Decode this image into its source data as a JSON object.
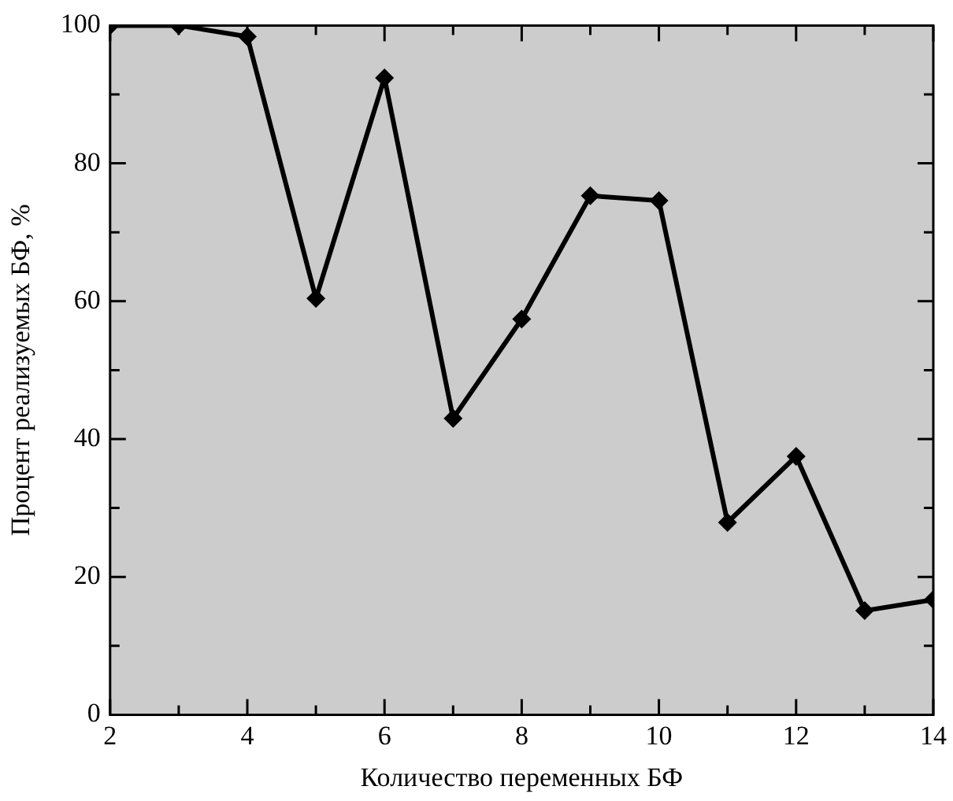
{
  "chart_data": {
    "type": "line",
    "xlabel": "Количество переменных БФ",
    "ylabel": "Процент реализуемых БФ, %",
    "x": [
      2,
      3,
      4,
      5,
      6,
      7,
      8,
      9,
      10,
      11,
      12,
      13,
      14
    ],
    "series": [
      {
        "color": "#000000",
        "values": [
          100,
          100,
          98.4,
          60.4,
          92.4,
          43,
          57.4,
          75.3,
          74.6,
          27.9,
          37.5,
          15.1,
          16.7
        ]
      }
    ],
    "xlim": [
      2,
      14
    ],
    "xticks": [
      2,
      {
        "value": 3,
        "label": null
      },
      4,
      {
        "value": 5,
        "label": null
      },
      6,
      {
        "value": 7,
        "label": null
      },
      8,
      {
        "value": 9,
        "label": null
      },
      10,
      {
        "value": 11,
        "label": null
      },
      12,
      {
        "value": 13,
        "label": null
      },
      14
    ],
    "ylim": [
      0,
      100
    ],
    "yticks": [
      0,
      {
        "value": 10,
        "label": null
      },
      20,
      {
        "value": 30,
        "label": null
      },
      40,
      {
        "value": 50,
        "label": null
      },
      60,
      {
        "value": 70,
        "label": null
      },
      80,
      {
        "value": 90,
        "label": null
      },
      100
    ],
    "grid": false,
    "legend": false,
    "marker": "diamond",
    "line_style": "solid"
  }
}
